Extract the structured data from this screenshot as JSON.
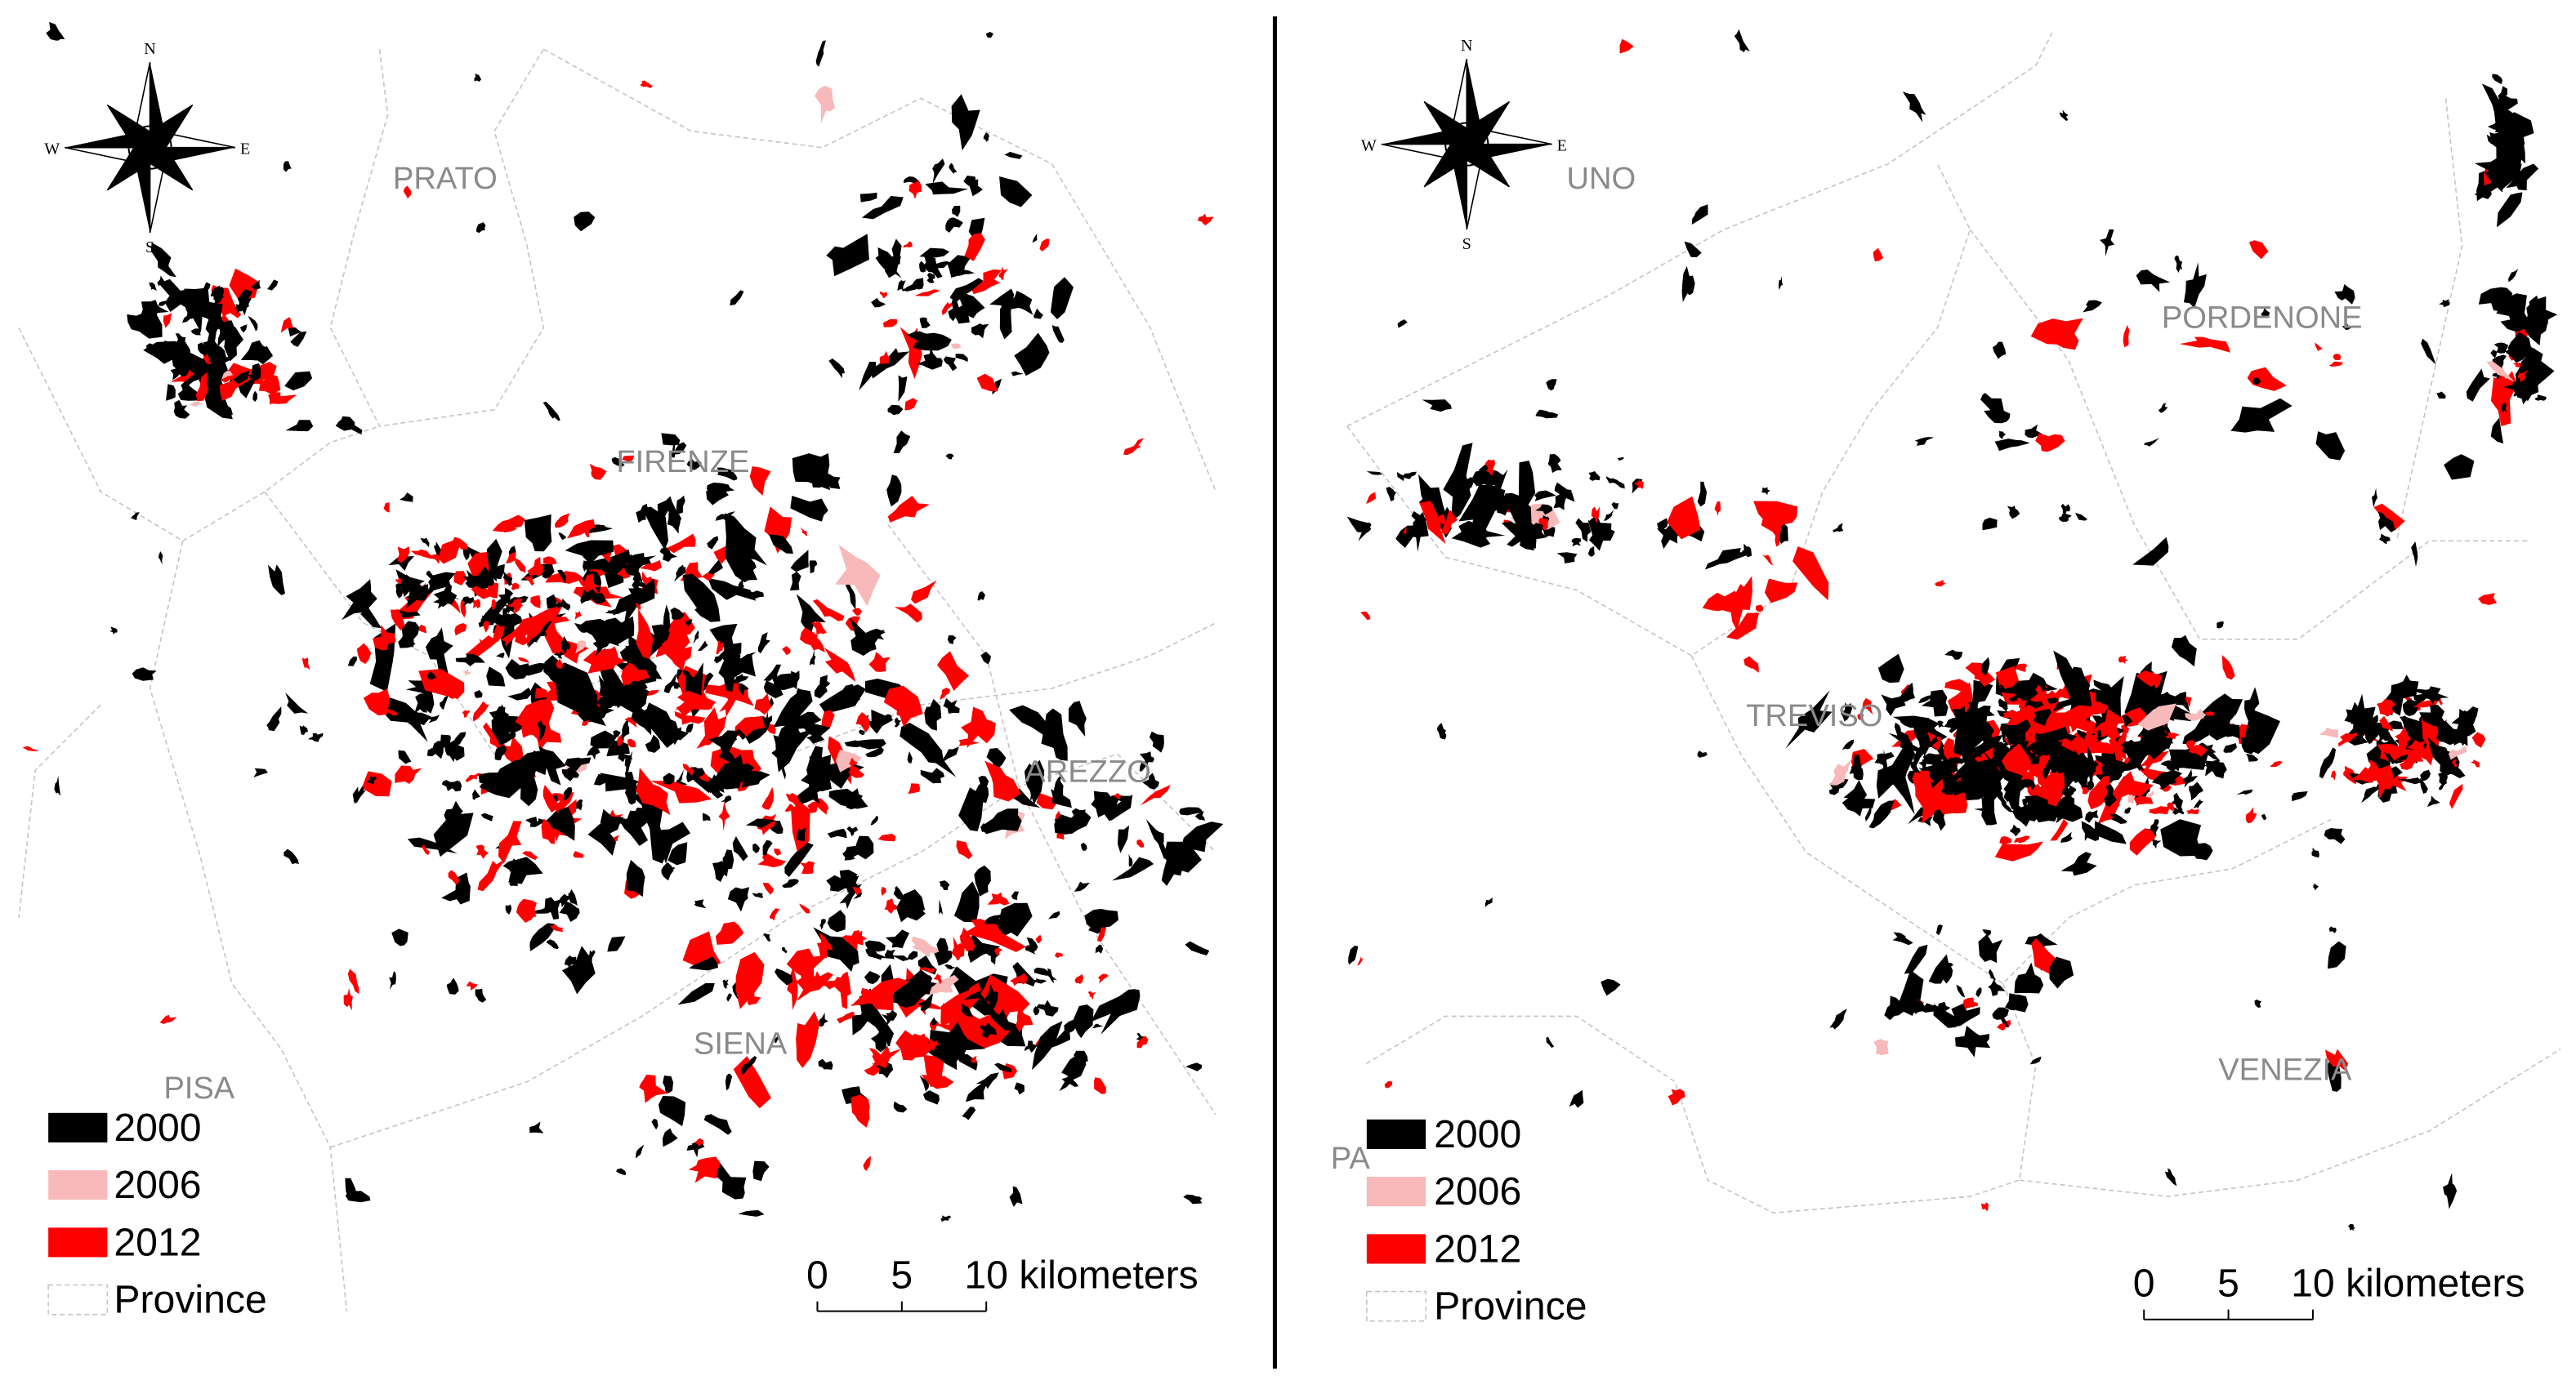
{
  "panels": [
    {
      "compass": {
        "n": "N",
        "s": "S",
        "e": "E",
        "w": "W"
      },
      "provinces": [
        "PRATO",
        "FIRENZE",
        "AREZZO",
        "SIENA",
        "PISA"
      ],
      "legend": [
        {
          "label": "2000",
          "color": "#000000"
        },
        {
          "label": "2006",
          "color": "#f7b9b9"
        },
        {
          "label": "2012",
          "color": "#ff0000"
        },
        {
          "label": "Province"
        }
      ],
      "scale": {
        "ticks": [
          "0",
          "5",
          "10"
        ],
        "unit": "kilometers"
      }
    },
    {
      "compass": {
        "n": "N",
        "s": "S",
        "e": "E",
        "w": "W"
      },
      "provinces": [
        "UNO",
        "PORDENONE",
        "TREVISO",
        "VENEZIA",
        "PA"
      ],
      "legend": [
        {
          "label": "2000",
          "color": "#000000"
        },
        {
          "label": "2006",
          "color": "#f7b9b9"
        },
        {
          "label": "2012",
          "color": "#ff0000"
        },
        {
          "label": "Province"
        }
      ],
      "scale": {
        "ticks": [
          "0",
          "5",
          "10"
        ],
        "unit": "kilometers"
      }
    }
  ]
}
